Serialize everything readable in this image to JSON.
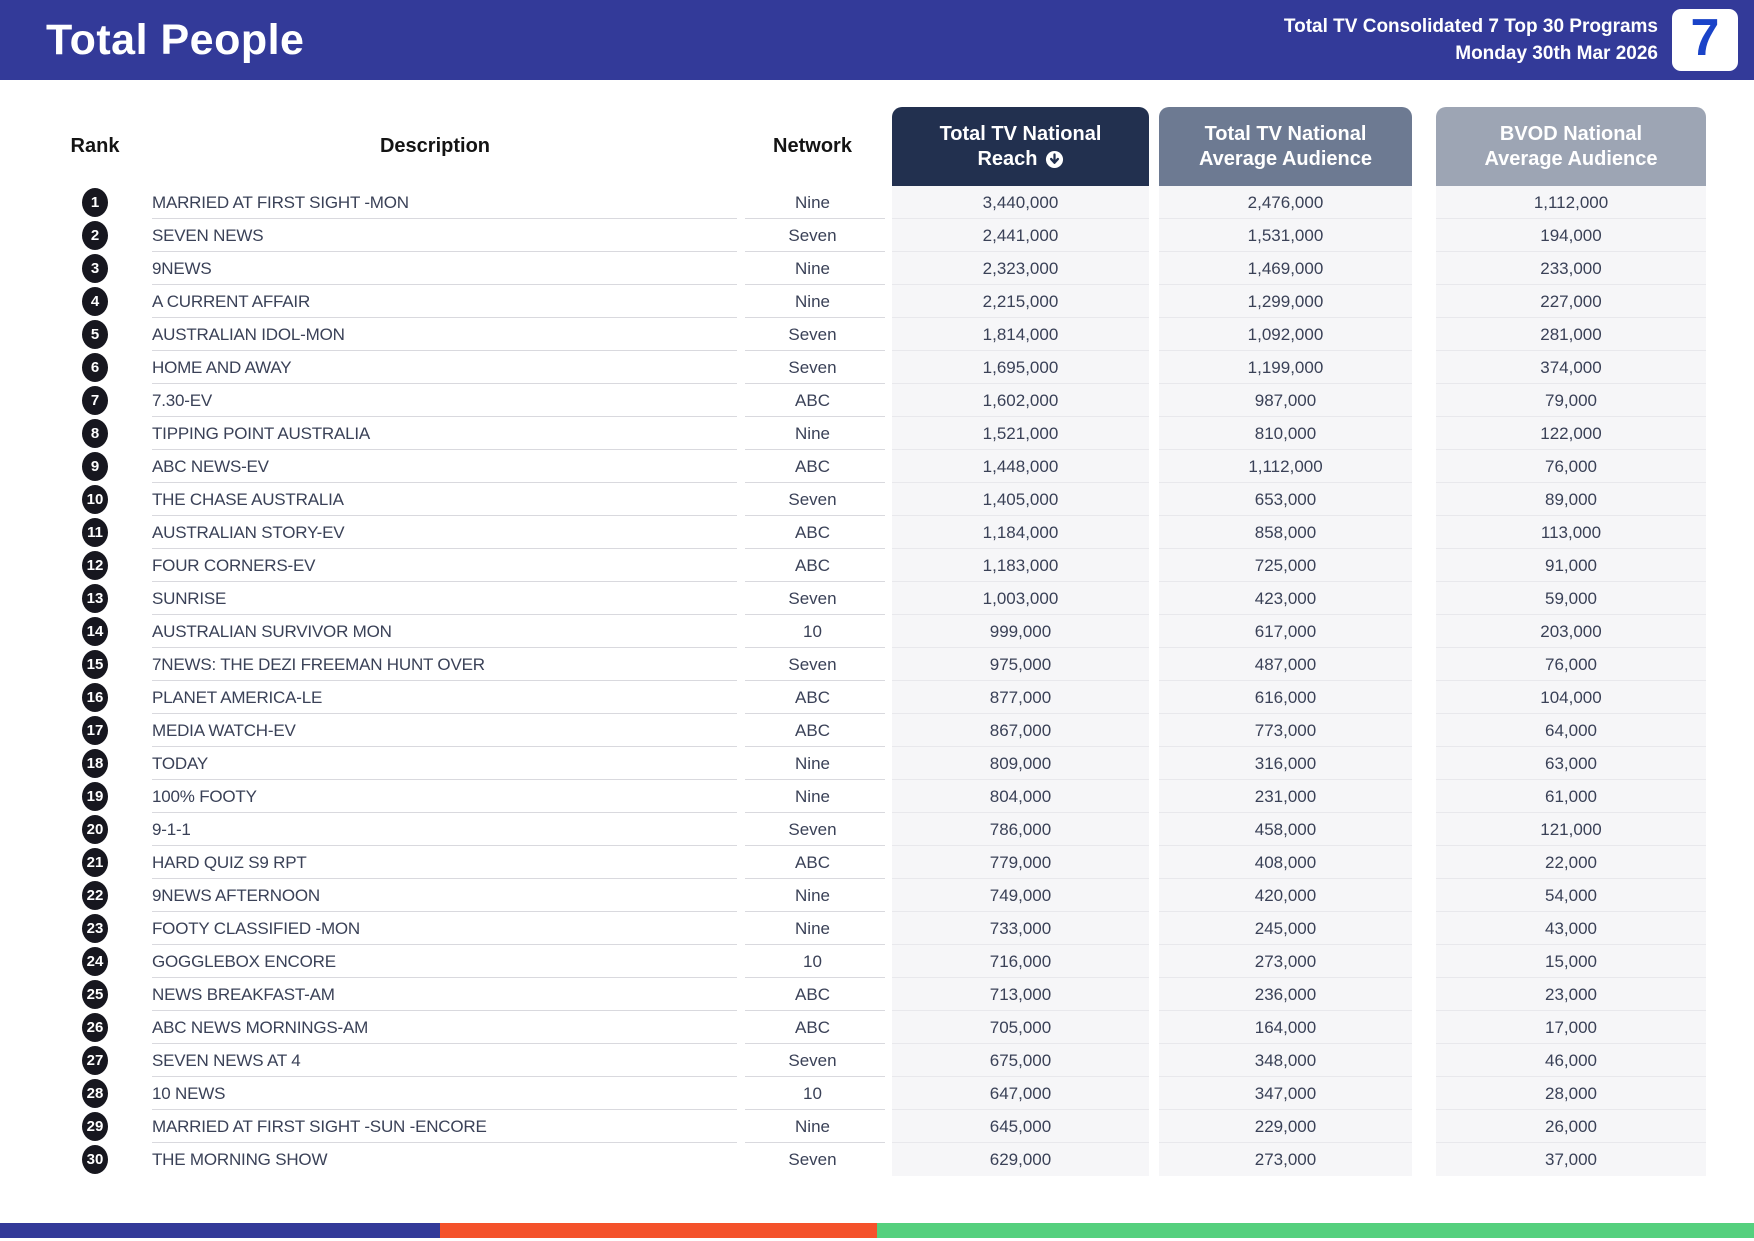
{
  "header": {
    "title": "Total People",
    "report_name": "Total TV Consolidated 7 Top 30 Programs",
    "report_date": "Monday 30th Mar 2026",
    "logo_text": "7",
    "bg_color": "#333A99",
    "logo_color": "#1A43C8"
  },
  "table": {
    "label_columns": {
      "rank": "Rank",
      "description": "Description",
      "network": "Network"
    },
    "metric_columns": {
      "reach": {
        "line1": "Total TV National",
        "line2": "Reach",
        "sort_icon": "circle-arrow-down-icon",
        "color": "#22304F"
      },
      "avg": {
        "line1": "Total TV National",
        "line2": "Average Audience",
        "color": "#6D7A92"
      },
      "bvod": {
        "line1": "BVOD National",
        "line2": "Average Audience",
        "color": "#9DA5B4"
      }
    },
    "rows": [
      {
        "rank": "1",
        "description": "MARRIED AT FIRST SIGHT -MON",
        "network": "Nine",
        "reach": "3,440,000",
        "avg": "2,476,000",
        "bvod": "1,112,000"
      },
      {
        "rank": "2",
        "description": "SEVEN NEWS",
        "network": "Seven",
        "reach": "2,441,000",
        "avg": "1,531,000",
        "bvod": "194,000"
      },
      {
        "rank": "3",
        "description": "9NEWS",
        "network": "Nine",
        "reach": "2,323,000",
        "avg": "1,469,000",
        "bvod": "233,000"
      },
      {
        "rank": "4",
        "description": "A CURRENT AFFAIR",
        "network": "Nine",
        "reach": "2,215,000",
        "avg": "1,299,000",
        "bvod": "227,000"
      },
      {
        "rank": "5",
        "description": "AUSTRALIAN IDOL-MON",
        "network": "Seven",
        "reach": "1,814,000",
        "avg": "1,092,000",
        "bvod": "281,000"
      },
      {
        "rank": "6",
        "description": "HOME AND AWAY",
        "network": "Seven",
        "reach": "1,695,000",
        "avg": "1,199,000",
        "bvod": "374,000"
      },
      {
        "rank": "7",
        "description": "7.30-EV",
        "network": "ABC",
        "reach": "1,602,000",
        "avg": "987,000",
        "bvod": "79,000"
      },
      {
        "rank": "8",
        "description": "TIPPING POINT AUSTRALIA",
        "network": "Nine",
        "reach": "1,521,000",
        "avg": "810,000",
        "bvod": "122,000"
      },
      {
        "rank": "9",
        "description": "ABC NEWS-EV",
        "network": "ABC",
        "reach": "1,448,000",
        "avg": "1,112,000",
        "bvod": "76,000"
      },
      {
        "rank": "10",
        "description": "THE CHASE AUSTRALIA",
        "network": "Seven",
        "reach": "1,405,000",
        "avg": "653,000",
        "bvod": "89,000"
      },
      {
        "rank": "11",
        "description": "AUSTRALIAN STORY-EV",
        "network": "ABC",
        "reach": "1,184,000",
        "avg": "858,000",
        "bvod": "113,000"
      },
      {
        "rank": "12",
        "description": "FOUR CORNERS-EV",
        "network": "ABC",
        "reach": "1,183,000",
        "avg": "725,000",
        "bvod": "91,000"
      },
      {
        "rank": "13",
        "description": "SUNRISE",
        "network": "Seven",
        "reach": "1,003,000",
        "avg": "423,000",
        "bvod": "59,000"
      },
      {
        "rank": "14",
        "description": "AUSTRALIAN SURVIVOR MON",
        "network": "10",
        "reach": "999,000",
        "avg": "617,000",
        "bvod": "203,000"
      },
      {
        "rank": "15",
        "description": "7NEWS: THE DEZI FREEMAN HUNT OVER",
        "network": "Seven",
        "reach": "975,000",
        "avg": "487,000",
        "bvod": "76,000"
      },
      {
        "rank": "16",
        "description": "PLANET AMERICA-LE",
        "network": "ABC",
        "reach": "877,000",
        "avg": "616,000",
        "bvod": "104,000"
      },
      {
        "rank": "17",
        "description": "MEDIA WATCH-EV",
        "network": "ABC",
        "reach": "867,000",
        "avg": "773,000",
        "bvod": "64,000"
      },
      {
        "rank": "18",
        "description": "TODAY",
        "network": "Nine",
        "reach": "809,000",
        "avg": "316,000",
        "bvod": "63,000"
      },
      {
        "rank": "19",
        "description": "100% FOOTY",
        "network": "Nine",
        "reach": "804,000",
        "avg": "231,000",
        "bvod": "61,000"
      },
      {
        "rank": "20",
        "description": "9-1-1",
        "network": "Seven",
        "reach": "786,000",
        "avg": "458,000",
        "bvod": "121,000"
      },
      {
        "rank": "21",
        "description": "HARD QUIZ S9 RPT",
        "network": "ABC",
        "reach": "779,000",
        "avg": "408,000",
        "bvod": "22,000"
      },
      {
        "rank": "22",
        "description": "9NEWS AFTERNOON",
        "network": "Nine",
        "reach": "749,000",
        "avg": "420,000",
        "bvod": "54,000"
      },
      {
        "rank": "23",
        "description": "FOOTY CLASSIFIED -MON",
        "network": "Nine",
        "reach": "733,000",
        "avg": "245,000",
        "bvod": "43,000"
      },
      {
        "rank": "24",
        "description": "GOGGLEBOX ENCORE",
        "network": "10",
        "reach": "716,000",
        "avg": "273,000",
        "bvod": "15,000"
      },
      {
        "rank": "25",
        "description": "NEWS BREAKFAST-AM",
        "network": "ABC",
        "reach": "713,000",
        "avg": "236,000",
        "bvod": "23,000"
      },
      {
        "rank": "26",
        "description": "ABC NEWS MORNINGS-AM",
        "network": "ABC",
        "reach": "705,000",
        "avg": "164,000",
        "bvod": "17,000"
      },
      {
        "rank": "27",
        "description": "SEVEN NEWS AT 4",
        "network": "Seven",
        "reach": "675,000",
        "avg": "348,000",
        "bvod": "46,000"
      },
      {
        "rank": "28",
        "description": "10 NEWS",
        "network": "10",
        "reach": "647,000",
        "avg": "347,000",
        "bvod": "28,000"
      },
      {
        "rank": "29",
        "description": "MARRIED AT FIRST SIGHT -SUN -ENCORE",
        "network": "Nine",
        "reach": "645,000",
        "avg": "229,000",
        "bvod": "26,000"
      },
      {
        "rank": "30",
        "description": "THE MORNING SHOW",
        "network": "Seven",
        "reach": "629,000",
        "avg": "273,000",
        "bvod": "37,000"
      }
    ]
  },
  "footer": {
    "segments": [
      {
        "color": "#333A99",
        "width_pct": 25.1
      },
      {
        "color": "#F4522B",
        "width_pct": 24.9
      },
      {
        "color": "#55D07E",
        "width_pct": 50.0
      }
    ]
  }
}
